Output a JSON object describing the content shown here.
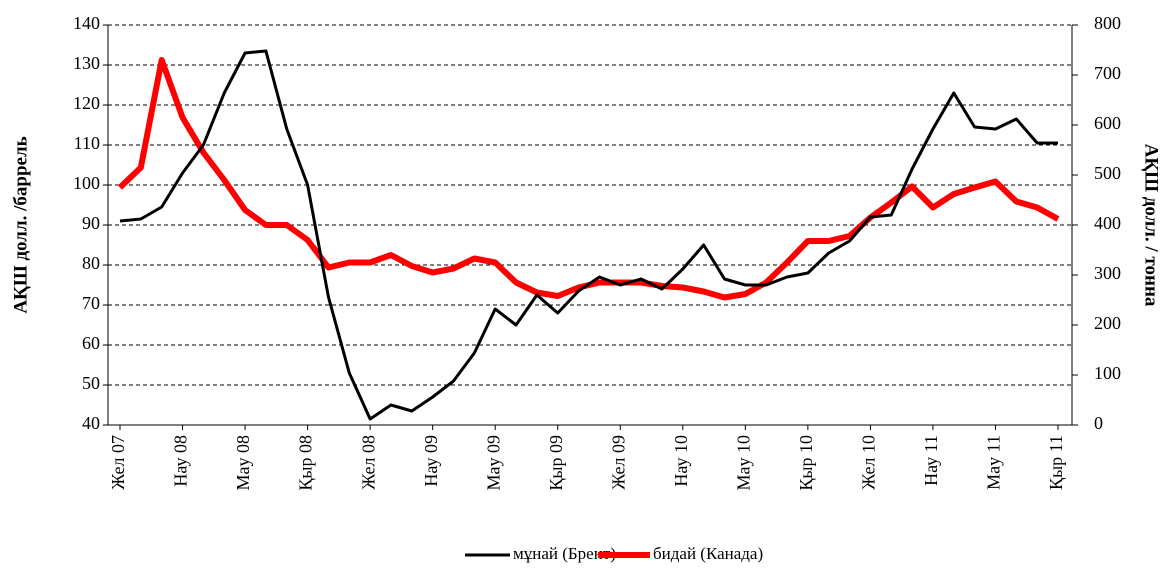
{
  "chart_data": {
    "type": "line",
    "y_label": "АҚШ долл. /баррель",
    "y2_label": "АҚШ долл. / тонна",
    "categories": [
      "Жел 07",
      null,
      null,
      "Нау 08",
      null,
      null,
      "May 08",
      null,
      null,
      "Қыр 08",
      null,
      null,
      "Жел 08",
      null,
      null,
      "Нау 09",
      null,
      null,
      "May 09",
      null,
      null,
      "Қыр 09",
      null,
      null,
      "Жел 09",
      null,
      null,
      "Нау 10",
      null,
      null,
      "May 10",
      null,
      null,
      "Қыр 10",
      null,
      null,
      "Жел 10",
      null,
      null,
      "Нау 11",
      null,
      null,
      "May 11",
      null,
      null,
      "Қыр 11"
    ],
    "series": [
      {
        "name": "мұнай (Брент)",
        "color": "#000000",
        "axis": "y",
        "values": [
          91,
          91.5,
          94.5,
          103,
          110,
          123,
          133,
          133.5,
          114,
          100,
          72,
          53,
          41.5,
          45,
          43.5,
          47,
          51,
          58,
          69,
          65,
          72.5,
          68,
          73.5,
          77,
          75,
          76.5,
          74,
          79,
          85,
          76.5,
          75,
          75,
          77,
          78,
          83,
          86,
          92,
          92.5,
          104,
          114,
          123,
          114.5,
          114,
          116.5,
          110.5,
          110.5
        ]
      },
      {
        "name": "бидай (Канада)",
        "color": "#ff0000",
        "axis": "y2",
        "values": [
          475,
          515,
          730,
          615,
          545,
          490,
          430,
          400,
          400,
          370,
          315,
          325,
          325,
          340,
          318,
          305,
          313,
          333,
          325,
          285,
          265,
          258,
          275,
          285,
          285,
          285,
          278,
          275,
          267,
          255,
          262,
          285,
          325,
          368,
          368,
          378,
          415,
          445,
          477,
          435,
          462,
          475,
          487,
          447,
          435,
          412
        ]
      }
    ],
    "ylim": [
      40,
      140
    ],
    "yticks": [
      40,
      50,
      60,
      70,
      80,
      90,
      100,
      110,
      120,
      130,
      140
    ],
    "y2lim": [
      0,
      800
    ],
    "y2ticks": [
      0,
      100,
      200,
      300,
      400,
      500,
      600,
      700,
      800
    ],
    "grid": true,
    "legend": "bottom"
  }
}
